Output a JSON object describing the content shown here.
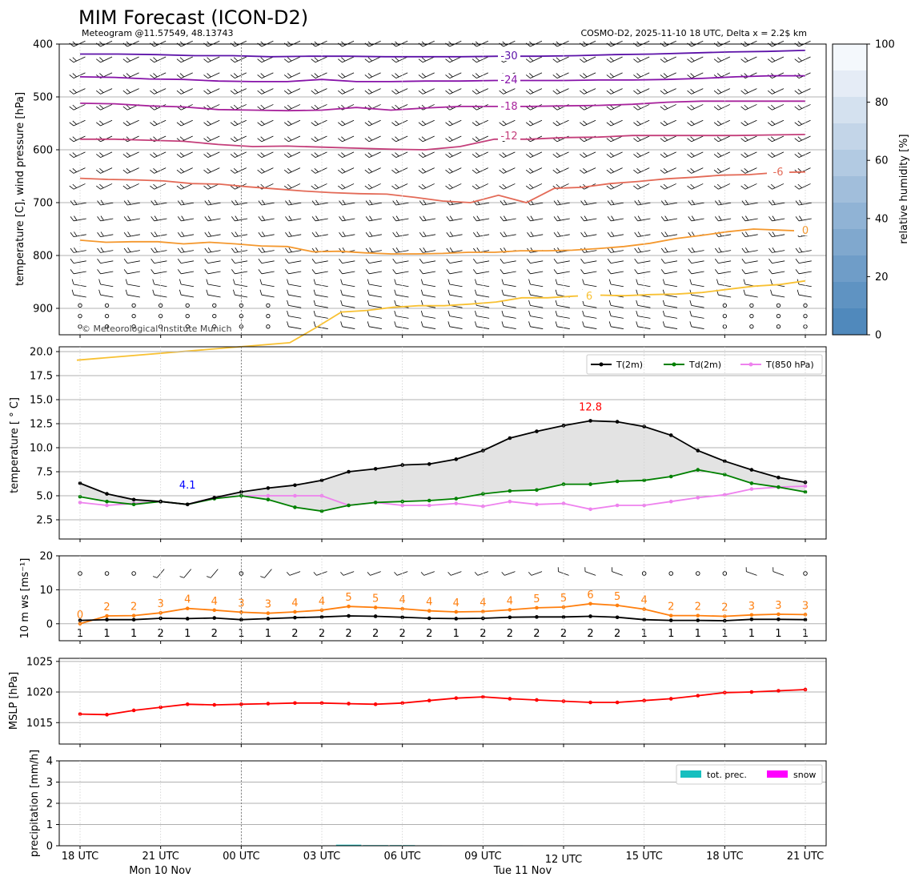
{
  "header": {
    "title": "MIM Forecast (ICON-D2)",
    "subtitle_left": "Meteogram @11.57549, 48.13743",
    "subtitle_right": "COSMO-D2, 2025-11-10 18 UTC, Delta x = 2.2$ km"
  },
  "x_axis": {
    "ticks": [
      "18 UTC",
      "21 UTC",
      "00 UTC",
      "03 UTC",
      "06 UTC",
      "09 UTC",
      "12 UTC",
      "15 UTC",
      "18 UTC",
      "21 UTC"
    ],
    "dates": [
      "Mon 10 Nov",
      "Tue 11 Nov"
    ]
  },
  "chart_data": [
    {
      "type": "line",
      "id": "upper_air",
      "ylabel": "temperature [C], wind pressure [hPa]",
      "ylim": [
        950,
        400
      ],
      "yticks": [
        "400",
        "500",
        "600",
        "700",
        "800",
        "900"
      ],
      "watermark": "© Meteorological Institute Munich",
      "colorbar": {
        "label": "relative humidity [%]",
        "ticks": [
          "0",
          "20",
          "40",
          "60",
          "80",
          "100"
        ],
        "colors": [
          "#5089bc",
          "#5f93c2",
          "#6f9dc8",
          "#80a8ce",
          "#90b3d5",
          "#a1bedb",
          "#b2cae2",
          "#c3d5e8",
          "#d4e1ef",
          "#e5ecf6",
          "#f4f8fc"
        ]
      },
      "isotherms": [
        {
          "label": "-30",
          "color": "#5c12a8",
          "values": [
            419,
            419,
            420,
            422,
            422,
            424,
            423,
            423,
            424,
            424,
            424,
            423,
            423,
            422,
            420,
            419,
            417,
            415,
            414,
            412
          ]
        },
        {
          "label": "-24",
          "color": "#8613a9",
          "values": [
            462,
            463,
            466,
            467,
            470,
            471,
            471,
            467,
            471,
            471,
            470,
            470,
            469,
            469,
            469,
            468,
            468,
            467,
            465,
            462,
            460,
            460
          ]
        },
        {
          "label": "-18",
          "color": "#a8249c",
          "values": [
            512,
            513,
            517,
            519,
            524,
            525,
            526,
            525,
            520,
            525,
            521,
            518,
            518,
            518,
            517,
            516,
            514,
            510,
            508,
            508,
            508,
            508
          ]
        },
        {
          "label": "-12",
          "color": "#c43e7a",
          "values": [
            580,
            580,
            582,
            584,
            590,
            594,
            593,
            595,
            597,
            599,
            600,
            594,
            580,
            580,
            577,
            576,
            573,
            573,
            573,
            573,
            572,
            571
          ]
        },
        {
          "label": "-6",
          "color": "#e36a57",
          "values": [
            654,
            656,
            657,
            659,
            664,
            665,
            670,
            674,
            678,
            681,
            683,
            684,
            690,
            697,
            700,
            686,
            700,
            673,
            671,
            664,
            660,
            655,
            652,
            648,
            647,
            643,
            642
          ]
        },
        {
          "label": "0",
          "color": "#f4982e",
          "values": [
            771,
            775,
            774,
            774,
            778,
            775,
            778,
            782,
            783,
            793,
            792,
            795,
            797,
            797,
            796,
            794,
            794,
            791,
            791,
            790,
            787,
            783,
            777,
            768,
            762,
            755,
            750,
            752,
            754
          ]
        },
        {
          "label": "6",
          "color": "#f8c133",
          "values": [
            998,
            965,
            937,
            907,
            904,
            898,
            895,
            895,
            892,
            888,
            880,
            880,
            877,
            875,
            876,
            874,
            873,
            870,
            864,
            858,
            855,
            848
          ]
        }
      ]
    },
    {
      "type": "line",
      "id": "surface_temperature",
      "ylabel": "temperature [$^\\circ$C]",
      "ylim": [
        0.5,
        20.5
      ],
      "yticks": [
        "2.5",
        "5.0",
        "7.5",
        "10.0",
        "12.5",
        "15.0",
        "17.5",
        "20.0"
      ],
      "series": [
        {
          "name": "T(2m)",
          "color": "#000000",
          "values": [
            6.3,
            5.2,
            4.6,
            4.4,
            4.1,
            4.8,
            5.4,
            5.8,
            6.1,
            6.6,
            7.5,
            7.8,
            8.2,
            8.3,
            8.8,
            9.7,
            11.0,
            11.7,
            12.3,
            12.8,
            12.7,
            12.2,
            11.3,
            9.7,
            8.6,
            7.7,
            6.9,
            6.4
          ]
        },
        {
          "name": "Td(2m)",
          "color": "#008000",
          "values": [
            4.9,
            4.4,
            4.1,
            4.4,
            4.1,
            4.7,
            5.0,
            4.6,
            3.8,
            3.4,
            4.0,
            4.3,
            4.4,
            4.5,
            4.7,
            5.2,
            5.5,
            5.6,
            6.2,
            6.2,
            6.5,
            6.6,
            7.0,
            7.7,
            7.2,
            6.3,
            5.9,
            5.4
          ]
        },
        {
          "name": "T(850 hPa)",
          "color": "#ee82ee",
          "values": [
            4.3,
            4.0,
            4.2,
            4.4,
            4.1,
            4.8,
            5.0,
            5.0,
            5.0,
            5.0,
            4.0,
            4.3,
            4.0,
            4.0,
            4.2,
            3.9,
            4.4,
            4.1,
            4.2,
            3.6,
            4.0,
            4.0,
            4.4,
            4.8,
            5.1,
            5.7,
            5.9,
            6.0
          ]
        }
      ],
      "annotations": [
        {
          "text": "4.1",
          "color": "#0000ff",
          "x": 4,
          "y": 6.1
        },
        {
          "text": "12.8",
          "color": "#ff0000",
          "x": 19,
          "y": 14.2
        }
      ]
    },
    {
      "type": "line",
      "id": "wind_10m",
      "ylabel": "10 m ws [ms$^{-1}$]",
      "ylim": [
        -5,
        20
      ],
      "yticks": [
        "0",
        "10",
        "20"
      ],
      "series": [
        {
          "name": "gust",
          "color": "#ff7f0e",
          "values": [
            0,
            2,
            2,
            3,
            4,
            4,
            3,
            3,
            4,
            4,
            5,
            5,
            4,
            4,
            4,
            4,
            4,
            5,
            5,
            6,
            5,
            4,
            2,
            2,
            2,
            3,
            3,
            3
          ],
          "line": [
            0.0,
            2.3,
            2.4,
            3.2,
            4.5,
            4.0,
            3.4,
            3.1,
            3.5,
            4.0,
            5.1,
            4.8,
            4.4,
            3.8,
            3.5,
            3.6,
            4.1,
            4.7,
            4.9,
            5.9,
            5.4,
            4.3,
            2.4,
            2.4,
            2.2,
            2.6,
            2.8,
            2.7
          ]
        },
        {
          "name": "mean",
          "color": "#000000",
          "values": [
            1,
            1,
            1,
            2,
            1,
            2,
            1,
            1,
            2,
            2,
            2,
            2,
            2,
            2,
            1,
            2,
            2,
            2,
            2,
            2,
            2,
            1,
            1,
            1,
            1,
            1,
            1,
            1
          ],
          "line": [
            1.0,
            1.2,
            1.2,
            1.6,
            1.5,
            1.7,
            1.2,
            1.5,
            1.8,
            2.0,
            2.3,
            2.2,
            1.9,
            1.6,
            1.5,
            1.6,
            1.9,
            2.0,
            2.0,
            2.2,
            1.9,
            1.2,
            1.0,
            1.0,
            0.9,
            1.3,
            1.3,
            1.2
          ]
        }
      ]
    },
    {
      "type": "line",
      "id": "mslp",
      "ylabel": "MSLP [hPa]",
      "ylim": [
        1011.5,
        1025.5
      ],
      "yticks": [
        "1015",
        "1020",
        "1025"
      ],
      "series": [
        {
          "name": "MSLP",
          "color": "#ff0000",
          "values": [
            1016.4,
            1016.3,
            1017.0,
            1017.5,
            1018.0,
            1017.9,
            1018.0,
            1018.1,
            1018.2,
            1018.2,
            1018.1,
            1018.0,
            1018.2,
            1018.6,
            1019.0,
            1019.2,
            1018.9,
            1018.7,
            1018.5,
            1018.3,
            1018.3,
            1018.6,
            1018.9,
            1019.4,
            1019.9,
            1020.0,
            1020.2,
            1020.4
          ]
        }
      ]
    },
    {
      "type": "bar",
      "id": "precipitation",
      "ylabel": "precipitation [mm/h]",
      "ylim": [
        0,
        4
      ],
      "yticks": [
        "0",
        "1",
        "2",
        "3",
        "4"
      ],
      "series": [
        {
          "name": "tot. prec.",
          "color": "#17bfbf",
          "values": [
            0,
            0,
            0,
            0,
            0,
            0,
            0,
            0,
            0,
            0.02,
            0.05,
            0.03,
            0.03,
            0.02,
            0,
            0,
            0.02,
            0,
            0,
            0,
            0,
            0,
            0,
            0,
            0,
            0,
            0,
            0
          ]
        },
        {
          "name": "snow",
          "color": "#ff00ff",
          "values": [
            0,
            0,
            0,
            0,
            0,
            0,
            0,
            0,
            0,
            0,
            0,
            0,
            0,
            0,
            0,
            0,
            0,
            0,
            0,
            0,
            0,
            0,
            0,
            0,
            0,
            0,
            0,
            0
          ]
        }
      ]
    }
  ]
}
